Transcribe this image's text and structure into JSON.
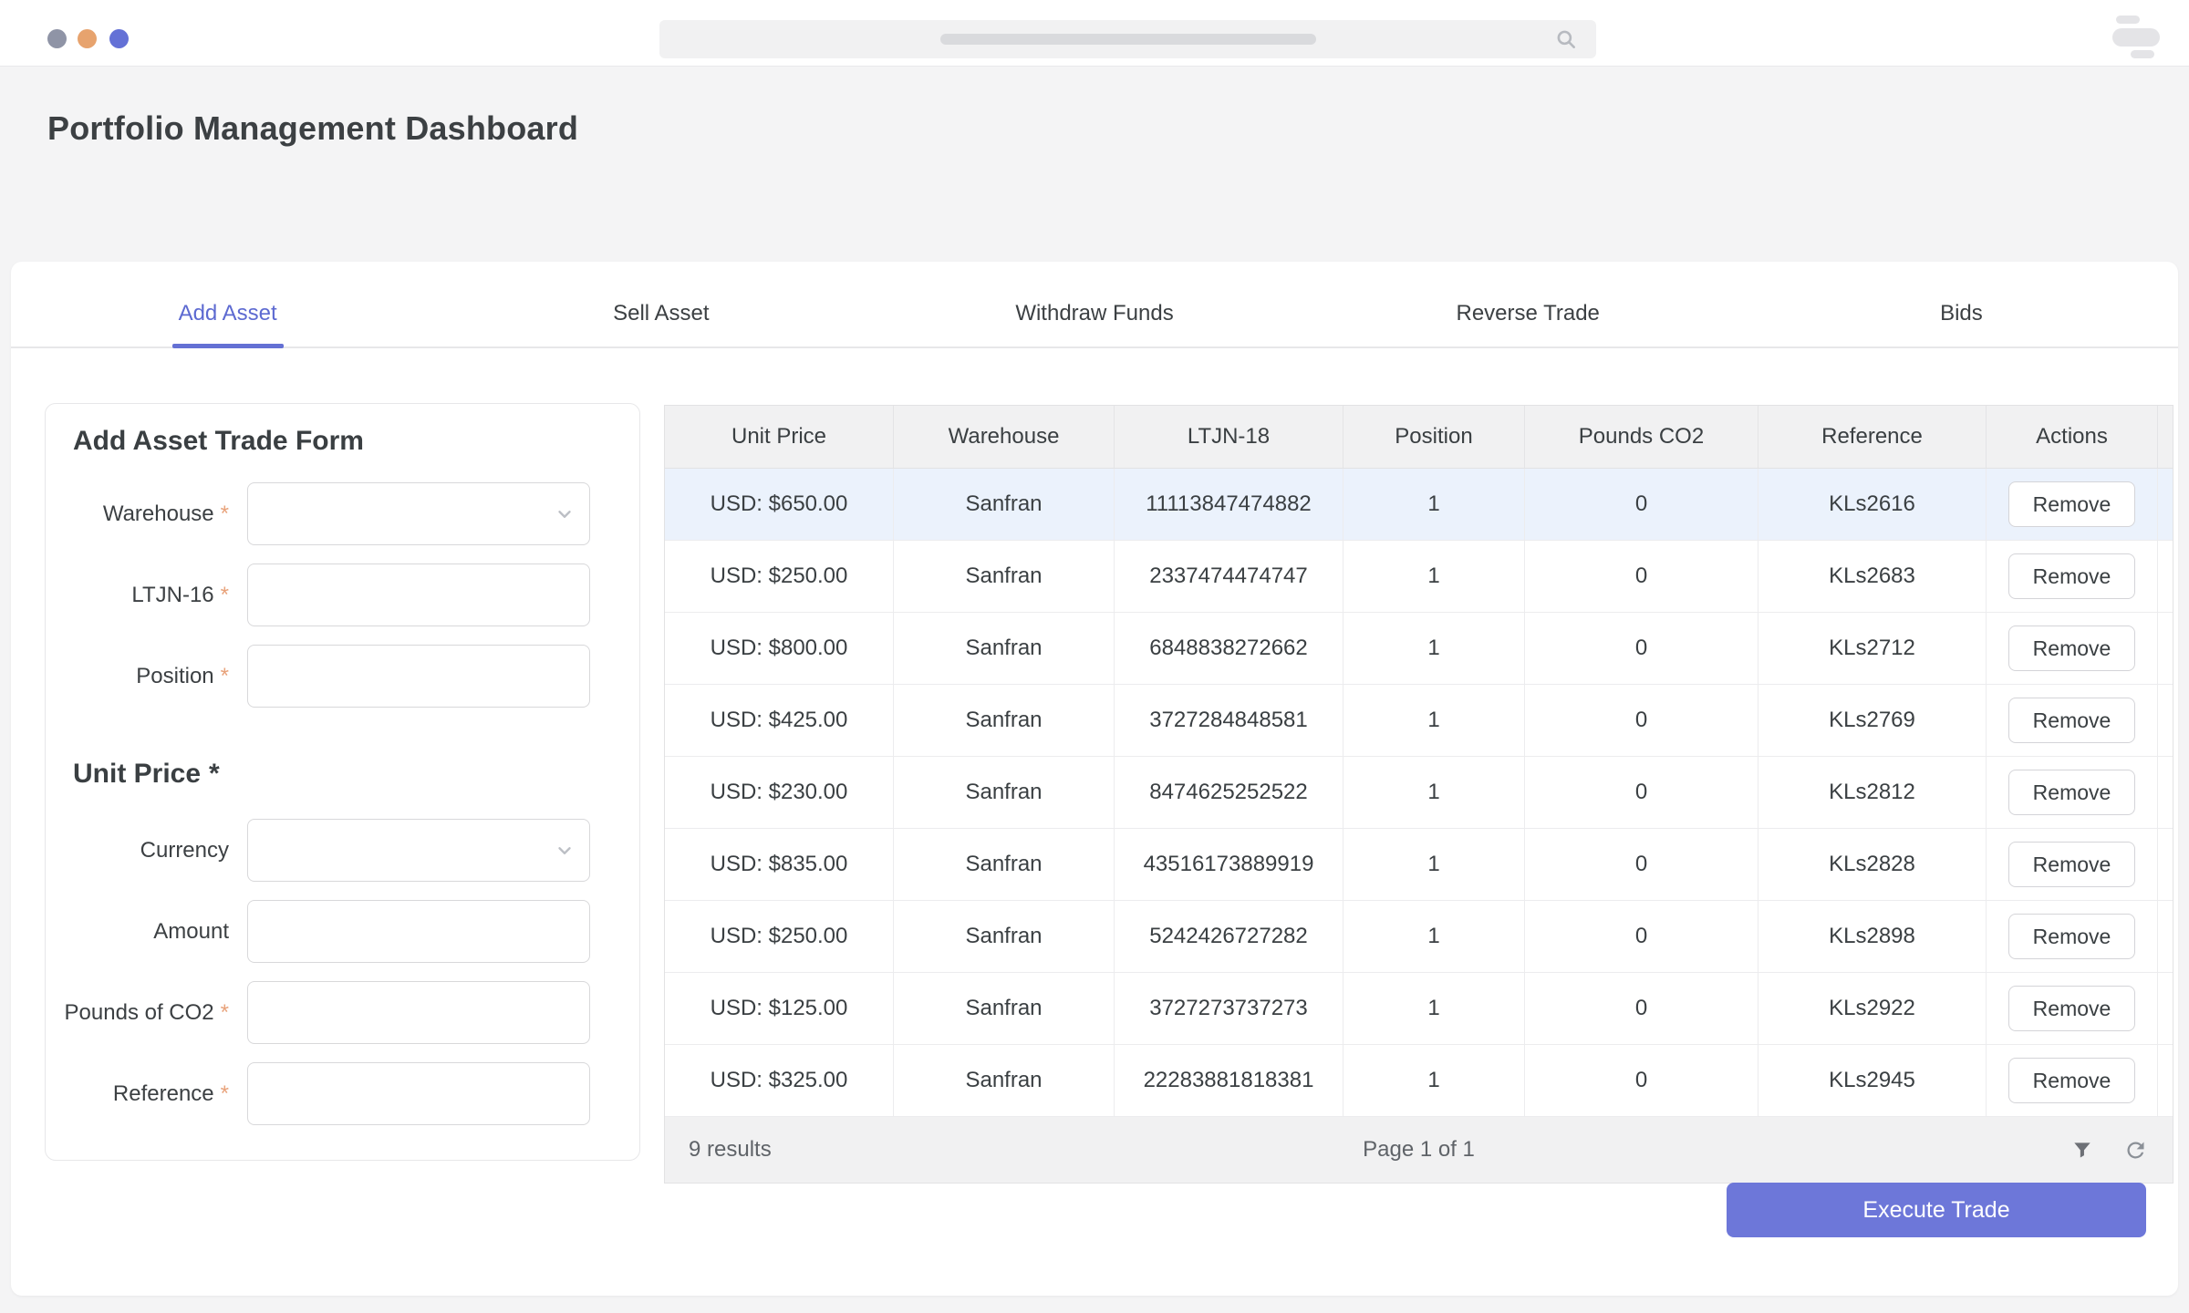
{
  "header": {
    "title": "Portfolio Management Dashboard"
  },
  "tabs": [
    {
      "label": "Add Asset",
      "active": true
    },
    {
      "label": "Sell Asset",
      "active": false
    },
    {
      "label": "Withdraw Funds",
      "active": false
    },
    {
      "label": "Reverse Trade",
      "active": false
    },
    {
      "label": "Bids",
      "active": false
    }
  ],
  "form": {
    "title": "Add Asset Trade Form",
    "groups": [
      {
        "heading": null,
        "fields": [
          {
            "label": "Warehouse",
            "required": true,
            "type": "select",
            "value": ""
          },
          {
            "label": "LTJN-16",
            "required": true,
            "type": "text",
            "value": ""
          },
          {
            "label": "Position",
            "required": true,
            "type": "text",
            "value": ""
          }
        ]
      },
      {
        "heading": "Unit Price",
        "heading_required": true,
        "fields": [
          {
            "label": "Currency",
            "required": false,
            "type": "select",
            "value": ""
          },
          {
            "label": "Amount",
            "required": false,
            "type": "text",
            "value": ""
          },
          {
            "label": "Pounds of CO2",
            "required": true,
            "type": "text",
            "value": ""
          },
          {
            "label": "Reference",
            "required": true,
            "type": "text",
            "value": ""
          }
        ]
      }
    ],
    "submit_label": "Execute Trade"
  },
  "table": {
    "columns": [
      "Unit Price",
      "Warehouse",
      "LTJN-18",
      "Position",
      "Pounds CO2",
      "Reference",
      "Actions"
    ],
    "rows": [
      {
        "unit_price": "USD: $650.00",
        "warehouse": "Sanfran",
        "ltjn18": "11113847474882",
        "position": "1",
        "pounds_co2": "0",
        "reference": "KLs2616",
        "action": "Remove",
        "highlighted": true
      },
      {
        "unit_price": "USD: $250.00",
        "warehouse": "Sanfran",
        "ltjn18": "2337474474747",
        "position": "1",
        "pounds_co2": "0",
        "reference": "KLs2683",
        "action": "Remove",
        "highlighted": false
      },
      {
        "unit_price": "USD: $800.00",
        "warehouse": "Sanfran",
        "ltjn18": "6848838272662",
        "position": "1",
        "pounds_co2": "0",
        "reference": "KLs2712",
        "action": "Remove",
        "highlighted": false
      },
      {
        "unit_price": "USD: $425.00",
        "warehouse": "Sanfran",
        "ltjn18": "3727284848581",
        "position": "1",
        "pounds_co2": "0",
        "reference": "KLs2769",
        "action": "Remove",
        "highlighted": false
      },
      {
        "unit_price": "USD: $230.00",
        "warehouse": "Sanfran",
        "ltjn18": "8474625252522",
        "position": "1",
        "pounds_co2": "0",
        "reference": "KLs2812",
        "action": "Remove",
        "highlighted": false
      },
      {
        "unit_price": "USD: $835.00",
        "warehouse": "Sanfran",
        "ltjn18": "43516173889919",
        "position": "1",
        "pounds_co2": "0",
        "reference": "KLs2828",
        "action": "Remove",
        "highlighted": false
      },
      {
        "unit_price": "USD: $250.00",
        "warehouse": "Sanfran",
        "ltjn18": "5242426727282",
        "position": "1",
        "pounds_co2": "0",
        "reference": "KLs2898",
        "action": "Remove",
        "highlighted": false
      },
      {
        "unit_price": "USD: $125.00",
        "warehouse": "Sanfran",
        "ltjn18": "3727273737273",
        "position": "1",
        "pounds_co2": "0",
        "reference": "KLs2922",
        "action": "Remove",
        "highlighted": false
      },
      {
        "unit_price": "USD: $325.00",
        "warehouse": "Sanfran",
        "ltjn18": "22283881818381",
        "position": "1",
        "pounds_co2": "0",
        "reference": "KLs2945",
        "action": "Remove",
        "highlighted": false
      }
    ],
    "footer": {
      "results": "9 results",
      "page": "Page 1 of 1"
    }
  },
  "icons": [
    "search-icon",
    "menu-icon",
    "chevron-down-icon",
    "filter-icon",
    "refresh-icon"
  ],
  "colors": {
    "accent_tab": "#5d6ad1",
    "accent_button": "#6d77d9",
    "row_highlight": "#ebf2fc",
    "required_asterisk": "#e8a27a",
    "dot_gray": "#8f94a6",
    "dot_orange": "#e7a36e",
    "dot_indigo": "#6471d6"
  }
}
